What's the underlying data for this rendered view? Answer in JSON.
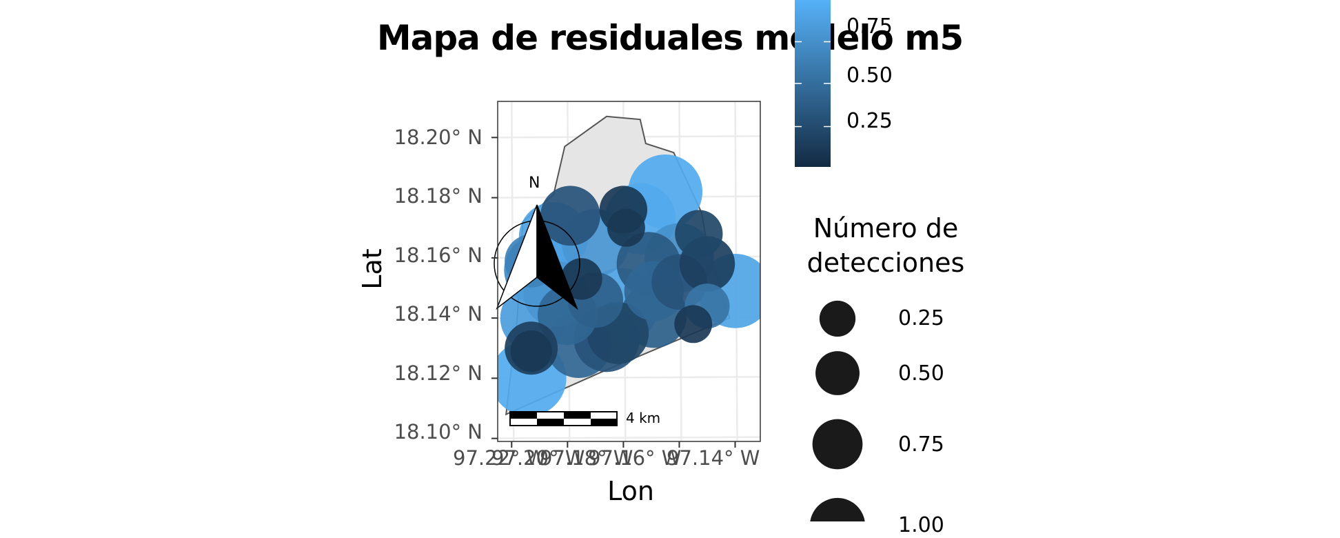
{
  "title": "Mapa de residuales modelo m5",
  "colors": {
    "panel_border": "#333333",
    "grid": "#ebebeb",
    "region_fill": "#e5e5e5",
    "region_stroke": "#555555",
    "low": "#132b43",
    "high": "#56b1f7",
    "size_legend_fill": "#1a1a1a"
  },
  "chart_data": {
    "type": "scatter",
    "title": "Mapa de residuales modelo m5",
    "xlabel": "Lon",
    "ylabel": "Lat",
    "xlim": [
      -97.225,
      -97.131
    ],
    "ylim": [
      18.099,
      18.212
    ],
    "x_ticks": [
      -97.22,
      -97.2,
      -97.18,
      -97.16,
      -97.14
    ],
    "x_tick_labels": [
      "97.22° W",
      "97.20° W",
      "97.18° W",
      "97.16° W",
      "97.14° W"
    ],
    "y_ticks": [
      18.1,
      18.12,
      18.14,
      18.16,
      18.18,
      18.2
    ],
    "y_tick_labels": [
      "18.10° N",
      "18.12° N",
      "18.14° N",
      "18.16° N",
      "18.18° N",
      "18.20° N"
    ],
    "grid": true,
    "region_outline": [
      [
        -97.201,
        18.197
      ],
      [
        -97.186,
        18.207
      ],
      [
        -97.174,
        18.206
      ],
      [
        -97.172,
        18.198
      ],
      [
        -97.162,
        18.195
      ],
      [
        -97.158,
        18.187
      ],
      [
        -97.152,
        18.175
      ],
      [
        -97.15,
        18.164
      ],
      [
        -97.142,
        18.14
      ],
      [
        -97.188,
        18.122
      ],
      [
        -97.222,
        18.108
      ],
      [
        -97.218,
        18.14
      ],
      [
        -97.216,
        18.172
      ],
      [
        -97.205,
        18.181
      ]
    ],
    "color_legend": {
      "labels": [
        "0.25",
        "0.50",
        "0.75"
      ],
      "values": [
        0.25,
        0.5,
        0.75
      ],
      "range": [
        0.0,
        1.0
      ],
      "placement": "right-top"
    },
    "size_legend": {
      "title": "Número de detecciones",
      "labels": [
        "0.25",
        "0.50",
        "0.75",
        "1.00"
      ],
      "values": [
        0.25,
        0.5,
        0.75,
        1.0
      ]
    },
    "points": [
      {
        "lon": -97.214,
        "lat": 18.12,
        "size": 1.0,
        "color": 0.95
      },
      {
        "lon": -97.213,
        "lat": 18.13,
        "size": 0.4,
        "color": 0.15
      },
      {
        "lon": -97.196,
        "lat": 18.131,
        "size": 0.7,
        "color": 0.45
      },
      {
        "lon": -97.212,
        "lat": 18.14,
        "size": 0.75,
        "color": 0.85
      },
      {
        "lon": -97.2,
        "lat": 18.141,
        "size": 0.55,
        "color": 0.45
      },
      {
        "lon": -97.186,
        "lat": 18.133,
        "size": 0.7,
        "color": 0.3
      },
      {
        "lon": -97.181,
        "lat": 18.144,
        "size": 1.0,
        "color": 0.9
      },
      {
        "lon": -97.182,
        "lat": 18.135,
        "size": 0.6,
        "color": 0.2
      },
      {
        "lon": -97.169,
        "lat": 18.141,
        "size": 0.7,
        "color": 0.4
      },
      {
        "lon": -97.169,
        "lat": 18.149,
        "size": 0.55,
        "color": 0.45
      },
      {
        "lon": -97.155,
        "lat": 18.138,
        "size": 0.15,
        "color": 0.1
      },
      {
        "lon": -97.16,
        "lat": 18.152,
        "size": 0.45,
        "color": 0.3
      },
      {
        "lon": -97.15,
        "lat": 18.144,
        "size": 0.25,
        "color": 0.55
      },
      {
        "lon": -97.14,
        "lat": 18.149,
        "size": 0.95,
        "color": 0.9
      },
      {
        "lon": -97.15,
        "lat": 18.158,
        "size": 0.45,
        "color": 0.15
      },
      {
        "lon": -97.16,
        "lat": 18.16,
        "size": 0.8,
        "color": 0.75
      },
      {
        "lon": -97.153,
        "lat": 18.168,
        "size": 0.3,
        "color": 0.2
      },
      {
        "lon": -97.171,
        "lat": 18.158,
        "size": 0.65,
        "color": 0.35
      },
      {
        "lon": -97.174,
        "lat": 18.173,
        "size": 0.85,
        "color": 0.95
      },
      {
        "lon": -97.165,
        "lat": 18.182,
        "size": 0.95,
        "color": 0.95
      },
      {
        "lon": -97.18,
        "lat": 18.176,
        "size": 0.3,
        "color": 0.1
      },
      {
        "lon": -97.179,
        "lat": 18.17,
        "size": 0.15,
        "color": 0.1
      },
      {
        "lon": -97.19,
        "lat": 18.165,
        "size": 0.75,
        "color": 0.8
      },
      {
        "lon": -97.199,
        "lat": 18.174,
        "size": 0.55,
        "color": 0.3
      },
      {
        "lon": -97.205,
        "lat": 18.167,
        "size": 0.8,
        "color": 0.9
      },
      {
        "lon": -97.213,
        "lat": 18.159,
        "size": 0.4,
        "color": 0.65
      },
      {
        "lon": -97.21,
        "lat": 18.156,
        "size": 0.85,
        "color": 0.7
      },
      {
        "lon": -97.204,
        "lat": 18.148,
        "size": 0.7,
        "color": 0.8
      },
      {
        "lon": -97.195,
        "lat": 18.153,
        "size": 0.2,
        "color": 0.1
      },
      {
        "lon": -97.19,
        "lat": 18.146,
        "size": 0.45,
        "color": 0.4
      },
      {
        "lon": -97.213,
        "lat": 18.129,
        "size": 0.2,
        "color": 0.1
      }
    ]
  },
  "map_elements": {
    "north_arrow_label": "N",
    "scale_bar_label": "4 km"
  }
}
